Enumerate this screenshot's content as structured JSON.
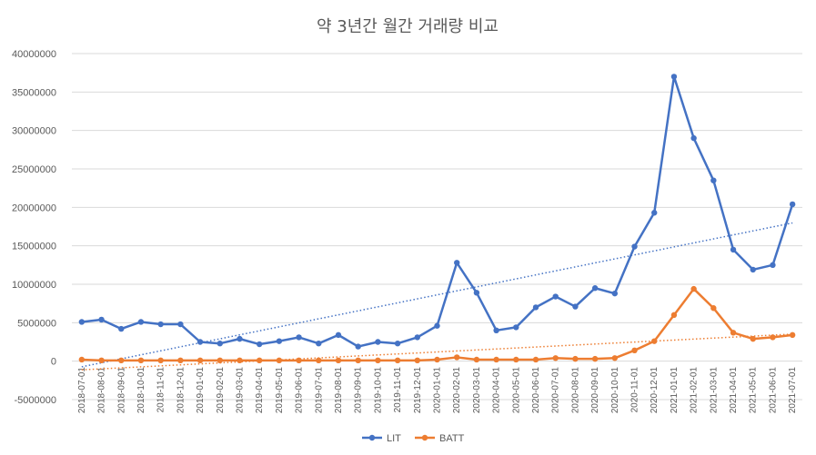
{
  "chart_data": {
    "type": "line",
    "title": "약 3년간 월간 거래량 비교",
    "xlabel": "",
    "ylabel": "",
    "ylim": [
      -5000000,
      40000000
    ],
    "yticks": [
      -5000000,
      0,
      5000000,
      10000000,
      15000000,
      20000000,
      25000000,
      30000000,
      35000000,
      40000000
    ],
    "grid": true,
    "legend_position": "bottom",
    "categories": [
      "2018-07-01",
      "2018-08-01",
      "2018-09-01",
      "2018-10-01",
      "2018-11-01",
      "2018-12-01",
      "2019-01-01",
      "2019-02-01",
      "2019-03-01",
      "2019-04-01",
      "2019-05-01",
      "2019-06-01",
      "2019-07-01",
      "2019-08-01",
      "2019-09-01",
      "2019-10-01",
      "2019-11-01",
      "2019-12-01",
      "2020-01-01",
      "2020-02-01",
      "2020-03-01",
      "2020-04-01",
      "2020-05-01",
      "2020-06-01",
      "2020-07-01",
      "2020-08-01",
      "2020-09-01",
      "2020-10-01",
      "2020-11-01",
      "2020-12-01",
      "2021-01-01",
      "2021-02-01",
      "2021-03-01",
      "2021-04-01",
      "2021-05-01",
      "2021-06-01",
      "2021-07-01"
    ],
    "series": [
      {
        "name": "LIT",
        "color": "#4472c4",
        "trendline": true,
        "values": [
          5100000,
          5400000,
          4200000,
          5100000,
          4800000,
          4800000,
          2500000,
          2300000,
          2900000,
          2200000,
          2600000,
          3100000,
          2300000,
          3400000,
          1900000,
          2500000,
          2300000,
          3100000,
          4600000,
          12800000,
          8900000,
          4000000,
          4400000,
          7000000,
          8400000,
          7100000,
          9500000,
          8800000,
          14900000,
          19300000,
          37000000,
          29000000,
          23500000,
          14500000,
          11900000,
          12500000,
          20400000
        ]
      },
      {
        "name": "BATT",
        "color": "#ed7d31",
        "trendline": true,
        "values": [
          200000,
          100000,
          100000,
          100000,
          100000,
          100000,
          100000,
          100000,
          100000,
          100000,
          100000,
          100000,
          100000,
          100000,
          100000,
          100000,
          100000,
          100000,
          200000,
          500000,
          200000,
          200000,
          200000,
          200000,
          400000,
          300000,
          300000,
          400000,
          1400000,
          2600000,
          6000000,
          9400000,
          6900000,
          3700000,
          2900000,
          3100000,
          3400000
        ]
      }
    ]
  }
}
